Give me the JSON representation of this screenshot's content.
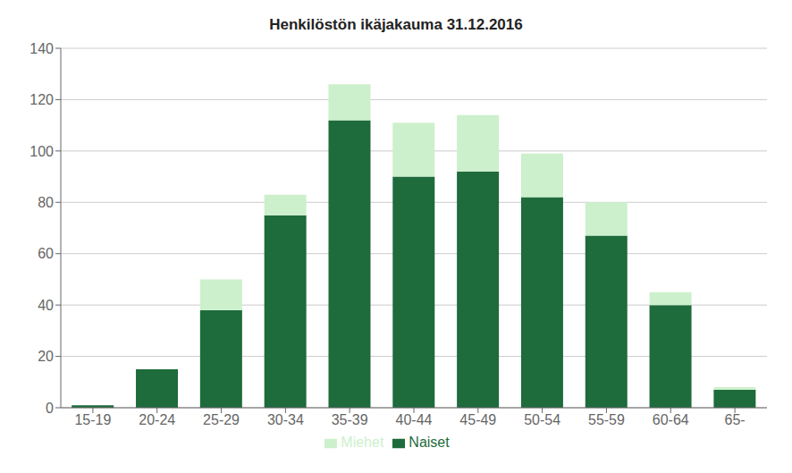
{
  "chart_data": {
    "type": "bar",
    "title": "Henkilöstön ikäjakauma 31.12.2016",
    "categories": [
      "15-19",
      "20-24",
      "25-29",
      "30-34",
      "35-39",
      "40-44",
      "45-49",
      "50-54",
      "55-59",
      "60-64",
      "65-"
    ],
    "series": [
      {
        "name": "Naiset",
        "color": "#1e6b3c",
        "values": [
          1,
          15,
          38,
          75,
          112,
          90,
          92,
          82,
          67,
          40,
          7
        ]
      },
      {
        "name": "Miehet",
        "color": "#ccf0cc",
        "values": [
          0,
          0,
          12,
          8,
          14,
          21,
          22,
          17,
          13,
          5,
          1
        ]
      }
    ],
    "stacked": true,
    "ylim": [
      0,
      140
    ],
    "yticks": [
      0,
      20,
      40,
      60,
      80,
      100,
      120,
      140
    ],
    "grid": true,
    "legend": "bottom"
  }
}
